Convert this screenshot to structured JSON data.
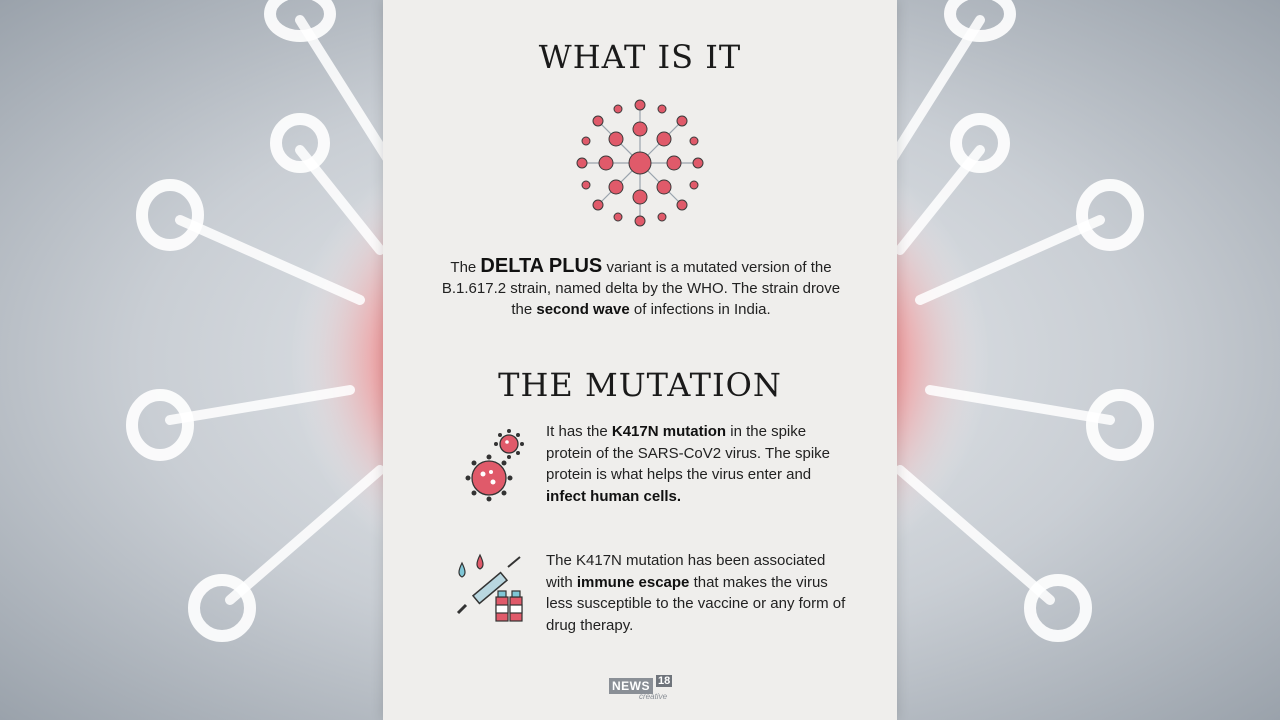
{
  "heading_what": "WHAT IS IT",
  "heading_mutation": "THE MUTATION",
  "intro": {
    "p1": "The ",
    "highlight": "DELTA PLUS",
    "p2": " variant is a mutated version of the B.1.617.2 strain, named delta by the WHO. The strain drove the ",
    "bold": "second wave",
    "p3": " of infections in India."
  },
  "mutation_item1": {
    "p1": "It has the ",
    "bold1": "K417N mutation",
    "p2": " in the spike protein of the SARS-CoV2 virus. The spike protein is what helps the virus enter and ",
    "bold2": "infect human cells."
  },
  "mutation_item2": {
    "p1": "The K417N mutation has been associated with ",
    "bold1": "immune escape",
    "p2": " that makes the virus less susceptible to the vaccine or any form of drug therapy."
  },
  "logo": {
    "name": "NEWS",
    "number": "18",
    "sub": "creative"
  },
  "colors": {
    "virus_red": "#e05a6a",
    "panel": "#efeeec",
    "text": "#222222"
  },
  "icons": [
    "virus-cluster-icon",
    "virus-icon",
    "syringe-vaccine-icon"
  ]
}
